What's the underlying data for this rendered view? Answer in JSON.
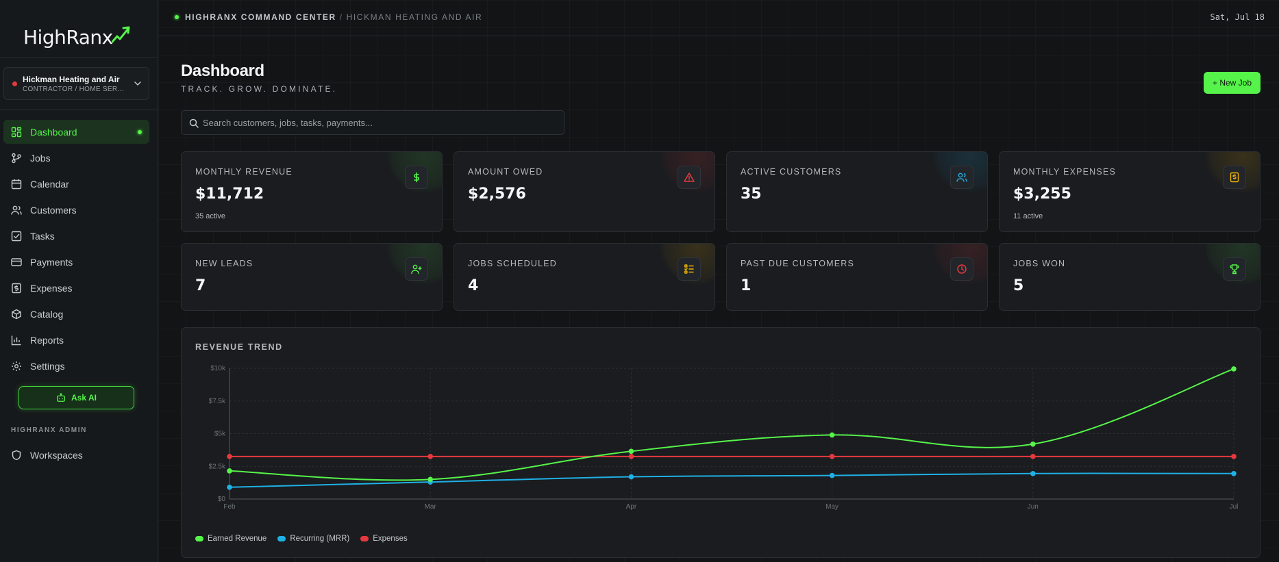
{
  "brand": {
    "name": "HighRanx"
  },
  "workspace": {
    "name": "Hickman Heating and Air",
    "type": "CONTRACTOR / HOME SERVICES"
  },
  "sidebar": {
    "items": [
      {
        "label": "Dashboard",
        "icon": "dashboard-icon",
        "active": true
      },
      {
        "label": "Jobs",
        "icon": "jobs-icon"
      },
      {
        "label": "Calendar",
        "icon": "calendar-icon"
      },
      {
        "label": "Customers",
        "icon": "customers-icon"
      },
      {
        "label": "Tasks",
        "icon": "tasks-icon"
      },
      {
        "label": "Payments",
        "icon": "payments-icon"
      },
      {
        "label": "Expenses",
        "icon": "expenses-icon"
      },
      {
        "label": "Catalog",
        "icon": "catalog-icon"
      },
      {
        "label": "Reports",
        "icon": "reports-icon"
      },
      {
        "label": "Settings",
        "icon": "settings-icon"
      }
    ],
    "ask_ai_label": "Ask AI",
    "admin_section_label": "HIGHRANX ADMIN",
    "admin_items": [
      {
        "label": "Workspaces",
        "icon": "shield-icon"
      }
    ]
  },
  "header": {
    "breadcrumb_root": "HIGHRANX COMMAND CENTER",
    "breadcrumb_separator": "/",
    "breadcrumb_current": "HICKMAN HEATING AND AIR",
    "date": "Sat, Jul 18"
  },
  "page": {
    "title": "Dashboard",
    "subtitle": "TRACK. GROW. DOMINATE.",
    "new_job_label": "+ New Job",
    "search_placeholder": "Search customers, jobs, tasks, payments..."
  },
  "stats": [
    {
      "label": "MONTHLY REVENUE",
      "value": "$11,712",
      "sub": "35 active",
      "icon": "dollar-icon",
      "color": "#56f44a"
    },
    {
      "label": "AMOUNT OWED",
      "value": "$2,576",
      "sub": "",
      "icon": "alert-triangle-icon",
      "color": "#e5393f"
    },
    {
      "label": "ACTIVE CUSTOMERS",
      "value": "35",
      "sub": "",
      "icon": "users-icon",
      "color": "#1fb0e6"
    },
    {
      "label": "MONTHLY EXPENSES",
      "value": "$3,255",
      "sub": "11 active",
      "icon": "receipt-icon",
      "color": "#f0b400"
    },
    {
      "label": "NEW LEADS",
      "value": "7",
      "sub": "",
      "icon": "user-plus-icon",
      "color": "#56f44a"
    },
    {
      "label": "JOBS SCHEDULED",
      "value": "4",
      "sub": "",
      "icon": "list-check-icon",
      "color": "#f0b400"
    },
    {
      "label": "PAST DUE CUSTOMERS",
      "value": "1",
      "sub": "",
      "icon": "clock-icon",
      "color": "#e5393f"
    },
    {
      "label": "JOBS WON",
      "value": "5",
      "sub": "",
      "icon": "trophy-icon",
      "color": "#56f44a"
    }
  ],
  "chart_data": {
    "type": "line",
    "title": "REVENUE TREND",
    "categories": [
      "Feb",
      "Mar",
      "Apr",
      "May",
      "Jun",
      "Jul"
    ],
    "yticks": [
      "$0",
      "$2.5k",
      "$5k",
      "$7.5k",
      "$10k"
    ],
    "ylim": [
      0,
      10000
    ],
    "grid": true,
    "legend_position": "bottom-left",
    "series": [
      {
        "name": "Earned Revenue",
        "color": "#56f44a",
        "values": [
          2150,
          1500,
          3650,
          4900,
          4200,
          9950
        ]
      },
      {
        "name": "Recurring (MRR)",
        "color": "#1fb0e6",
        "values": [
          900,
          1300,
          1700,
          1800,
          1950,
          1950
        ]
      },
      {
        "name": "Expenses",
        "color": "#e5393f",
        "values": [
          3255,
          3255,
          3255,
          3255,
          3255,
          3255
        ]
      }
    ]
  }
}
